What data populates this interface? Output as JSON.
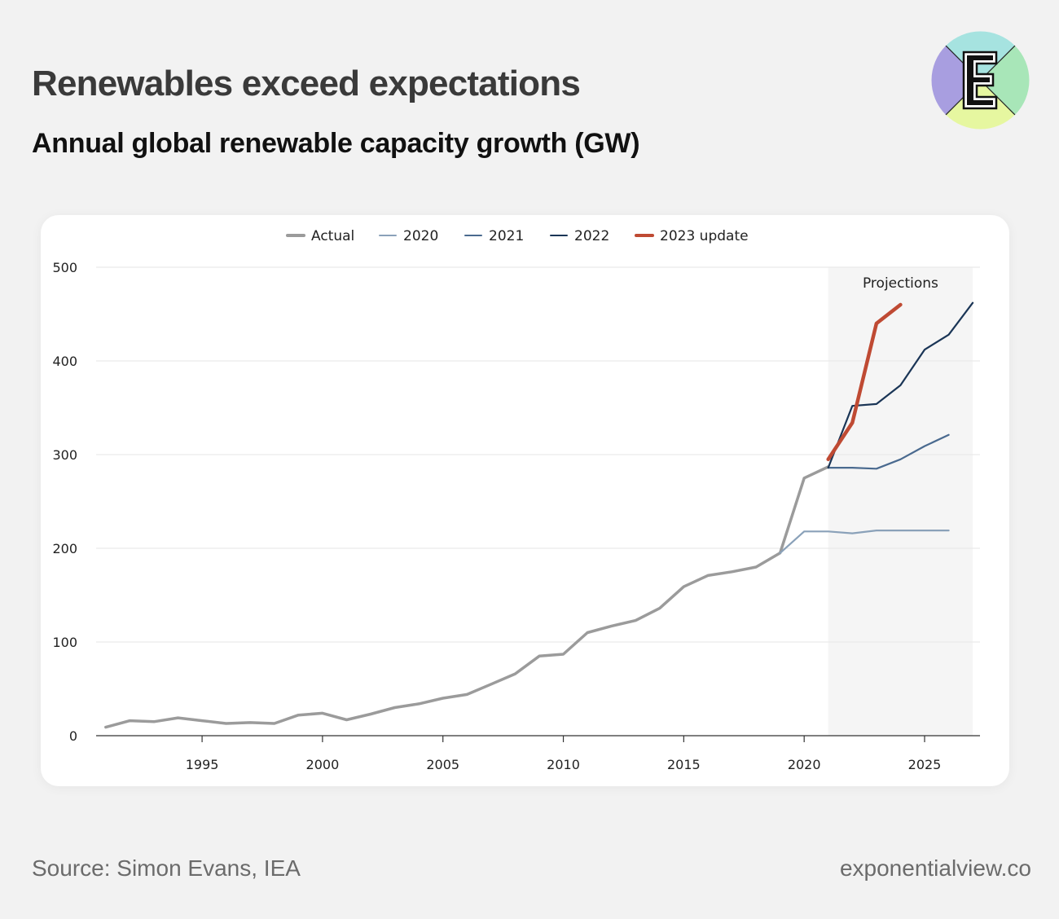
{
  "title": "Renewables exceed expectations",
  "subtitle": "Annual global renewable capacity growth (GW)",
  "source": "Source: Simon Evans, IEA",
  "site": "exponentialview.co",
  "logo": {
    "letter": "E",
    "colors": [
      "#a6e3e0",
      "#a8e6b8",
      "#e6f7a0",
      "#a89ee0"
    ]
  },
  "chart_data": {
    "type": "line",
    "title": "",
    "xlabel": "",
    "ylabel": "",
    "xlim": [
      1990.6,
      2027.3
    ],
    "ylim": [
      0,
      500
    ],
    "yticks": [
      0,
      100,
      200,
      300,
      400,
      500
    ],
    "xticks": [
      1995,
      2000,
      2005,
      2010,
      2015,
      2020,
      2025
    ],
    "grid": true,
    "legend_position": "top",
    "annotation": {
      "label": "Projections",
      "x_from": 2021,
      "x_to": 2027
    },
    "series": [
      {
        "name": "Actual",
        "color": "#9b9b9b",
        "points": [
          [
            1991,
            9
          ],
          [
            1992,
            16
          ],
          [
            1993,
            15
          ],
          [
            1994,
            19
          ],
          [
            1995,
            16
          ],
          [
            1996,
            13
          ],
          [
            1997,
            14
          ],
          [
            1998,
            13
          ],
          [
            1999,
            22
          ],
          [
            2000,
            24
          ],
          [
            2001,
            17
          ],
          [
            2002,
            23
          ],
          [
            2003,
            30
          ],
          [
            2004,
            34
          ],
          [
            2005,
            40
          ],
          [
            2006,
            44
          ],
          [
            2007,
            55
          ],
          [
            2008,
            66
          ],
          [
            2009,
            85
          ],
          [
            2010,
            87
          ],
          [
            2011,
            110
          ],
          [
            2012,
            117
          ],
          [
            2013,
            123
          ],
          [
            2014,
            136
          ],
          [
            2015,
            159
          ],
          [
            2016,
            171
          ],
          [
            2017,
            175
          ],
          [
            2018,
            180
          ],
          [
            2019,
            195
          ],
          [
            2020,
            275
          ],
          [
            2021,
            287
          ]
        ]
      },
      {
        "name": "2020",
        "color": "#8aa1b9",
        "points": [
          [
            2019,
            195
          ],
          [
            2020,
            218
          ],
          [
            2021,
            218
          ],
          [
            2022,
            216
          ],
          [
            2023,
            219
          ],
          [
            2024,
            219
          ],
          [
            2025,
            219
          ],
          [
            2026,
            219
          ]
        ]
      },
      {
        "name": "2021",
        "color": "#4a6a8f",
        "points": [
          [
            2021,
            286
          ],
          [
            2022,
            286
          ],
          [
            2023,
            285
          ],
          [
            2024,
            295
          ],
          [
            2025,
            309
          ],
          [
            2026,
            321
          ]
        ]
      },
      {
        "name": "2022",
        "color": "#1a3556",
        "points": [
          [
            2021,
            286
          ],
          [
            2022,
            352
          ],
          [
            2023,
            354
          ],
          [
            2024,
            374
          ],
          [
            2025,
            412
          ],
          [
            2026,
            428
          ],
          [
            2027,
            462
          ]
        ]
      },
      {
        "name": "2023 update",
        "color": "#bf4a33",
        "points": [
          [
            2021,
            295
          ],
          [
            2022,
            334
          ],
          [
            2023,
            440
          ],
          [
            2024,
            460
          ]
        ]
      }
    ]
  }
}
